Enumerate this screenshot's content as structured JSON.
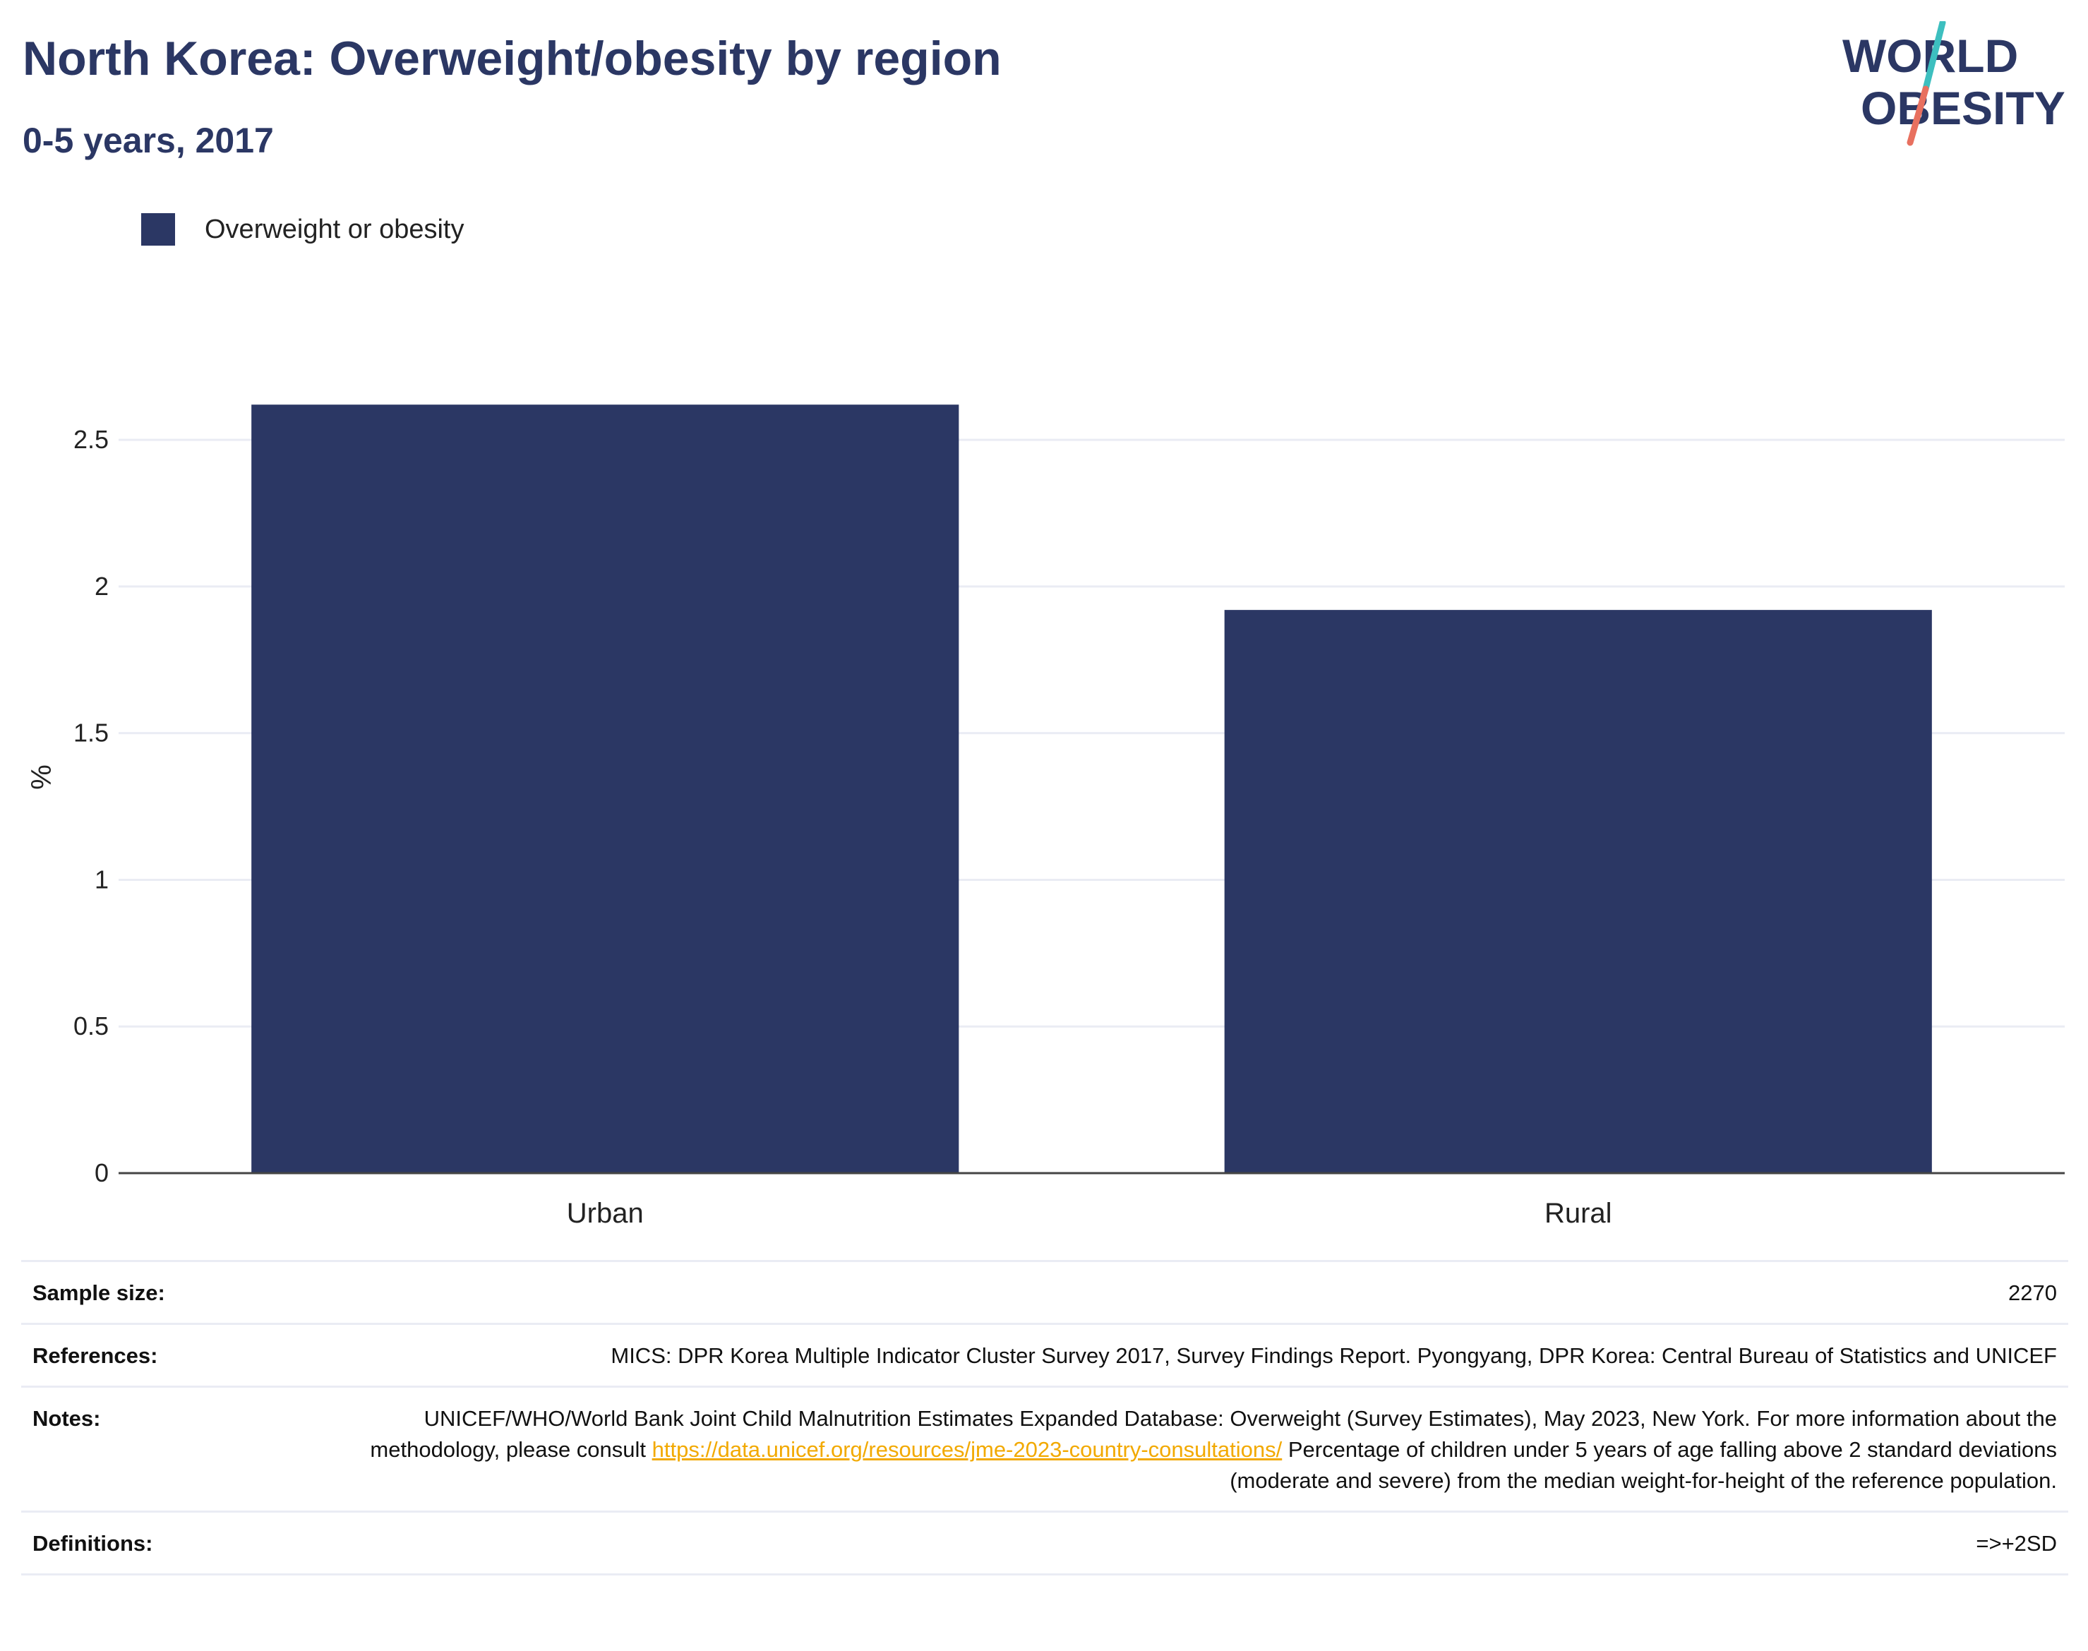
{
  "header": {
    "title": "North Korea: Overweight/obesity by region",
    "subtitle": "0-5 years, 2017"
  },
  "logo": {
    "text_line1": "WORLD",
    "text_line2": "OBESITY",
    "colors": {
      "text": "#2b3764",
      "slash_top": "#3dbfbf",
      "slash_bottom": "#e8705f"
    }
  },
  "legend": {
    "items": [
      {
        "label": "Overweight or obesity",
        "color": "#2b3764"
      }
    ],
    "placement": "top-left"
  },
  "chart_data": {
    "type": "bar",
    "title": "North Korea: Overweight/obesity by region",
    "subtitle": "0-5 years, 2017",
    "categories": [
      "Urban",
      "Rural"
    ],
    "series": [
      {
        "name": "Overweight or obesity",
        "values": [
          2.62,
          1.92
        ],
        "color": "#2b3764"
      }
    ],
    "xlabel": "",
    "ylabel": "%",
    "ylim": [
      0,
      2.7
    ],
    "yticks": [
      0,
      0.5,
      1,
      1.5,
      2,
      2.5
    ],
    "ytick_labels": [
      "0",
      "0.5",
      "1",
      "1.5",
      "2",
      "2.5"
    ],
    "grid": true,
    "gridline_color": "#eaecf4",
    "axis_color": "#444444"
  },
  "info": {
    "sample_size": {
      "label": "Sample size:",
      "value": "2270"
    },
    "references": {
      "label": "References:",
      "value": "MICS: DPR Korea Multiple Indicator Cluster Survey 2017, Survey Findings Report. Pyongyang, DPR Korea: Central Bureau of Statistics and UNICEF"
    },
    "notes": {
      "label": "Notes:",
      "text_before_link": "UNICEF/WHO/World Bank Joint Child Malnutrition Estimates Expanded Database: Overweight (Survey Estimates), May 2023, New York. For more information about the methodology, please consult ",
      "link": "https://data.unicef.org/resources/jme-2023-country-consultations/",
      "text_after_link": " Percentage of children under 5 years of age falling above 2 standard deviations (moderate and severe) from the median weight-for-height of the reference population."
    },
    "definitions": {
      "label": "Definitions:",
      "value": "=>+2SD"
    }
  }
}
